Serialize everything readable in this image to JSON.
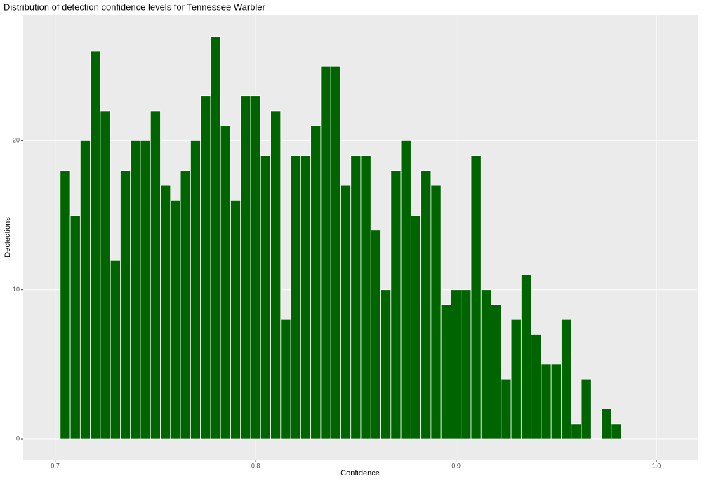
{
  "chart_data": {
    "type": "histogram",
    "title": "Distribution of detection confidence levels for Tennessee Warbler",
    "x_label": "Confidence",
    "y_label": "Dectections",
    "bins": [
      0.7025,
      0.7075,
      0.7125,
      0.7175,
      0.7225,
      0.7275,
      0.7325,
      0.7375,
      0.7425,
      0.7475,
      0.7525,
      0.7575,
      0.7625,
      0.7675,
      0.7725,
      0.7775,
      0.7825,
      0.7875,
      0.7925,
      0.7975,
      0.8025,
      0.8075,
      0.8125,
      0.8175,
      0.8225,
      0.8275,
      0.8325,
      0.8375,
      0.8425,
      0.8475,
      0.8525,
      0.8575,
      0.8625,
      0.8675,
      0.8725,
      0.8775,
      0.8825,
      0.8875,
      0.8925,
      0.8975,
      0.9025,
      0.9075,
      0.9125,
      0.9175,
      0.9225,
      0.9275,
      0.9325,
      0.9375,
      0.9425,
      0.9475,
      0.9525,
      0.9575,
      0.9625,
      0.9675,
      0.9725,
      0.9775,
      0.9825
    ],
    "values": [
      18,
      15,
      20,
      26,
      22,
      12,
      18,
      20,
      20,
      22,
      17,
      16,
      18,
      20,
      23,
      27,
      21,
      16,
      23,
      23,
      19,
      22,
      8,
      19,
      19,
      21,
      25,
      25,
      17,
      19,
      19,
      14,
      10,
      18,
      20,
      15,
      18,
      17,
      9,
      10,
      10,
      19,
      10,
      9,
      4,
      8,
      11,
      7,
      5,
      5,
      8,
      1,
      4,
      0,
      2,
      1
    ],
    "color": "#006400",
    "xlim": [
      0.684,
      1.021
    ],
    "xticks": [
      0.7,
      0.8,
      0.9,
      {
        "value": 1,
        "label": "1.0"
      }
    ],
    "ylim": [
      -1.41,
      28.4
    ],
    "yticks": [
      0,
      10,
      20
    ],
    "grid": true
  }
}
